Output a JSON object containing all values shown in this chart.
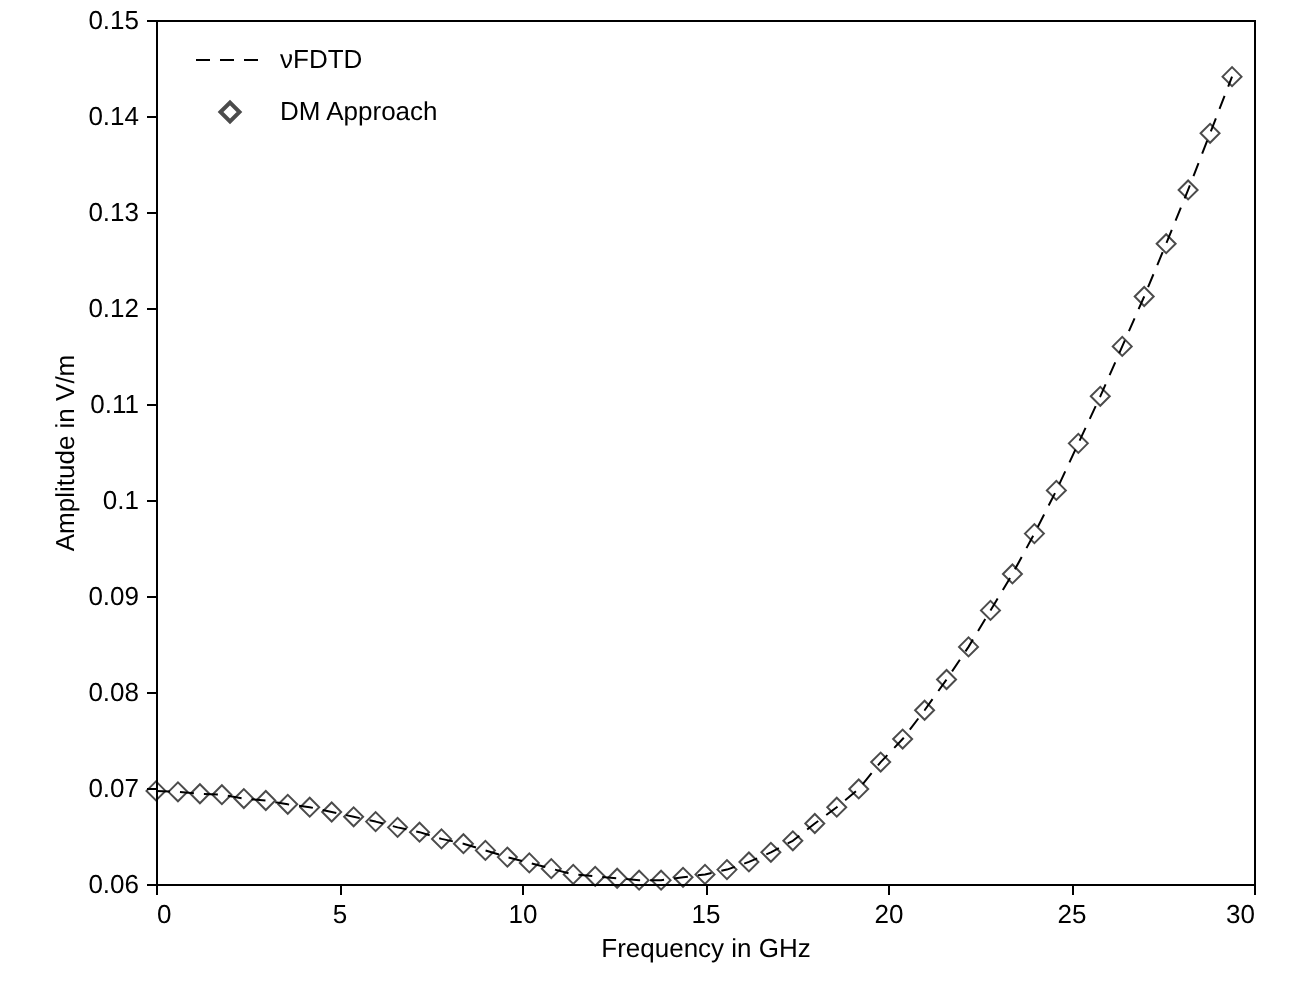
{
  "chart_data": {
    "type": "line",
    "xlabel": "Frequency in GHz",
    "ylabel": "Amplitude in V/m",
    "x": [
      0,
      0.6,
      1.2,
      1.8,
      2.4,
      3.0,
      3.6,
      4.2,
      4.8,
      5.4,
      6.0,
      6.6,
      7.2,
      7.8,
      8.4,
      9.0,
      9.6,
      10.2,
      10.8,
      11.4,
      12.0,
      12.6,
      13.2,
      13.8,
      14.4,
      15.0,
      15.6,
      16.2,
      16.8,
      17.4,
      18.0,
      18.6,
      19.2,
      19.8,
      20.4,
      21.0,
      21.6,
      22.2,
      22.8,
      23.4,
      24.0,
      24.6,
      25.2,
      25.8,
      26.4,
      27.0,
      27.6,
      28.2,
      28.8,
      29.4
    ],
    "series": [
      {
        "name": "νFDTD",
        "color": "#000000",
        "line_style": "dashed",
        "marker": "none",
        "values": [
          0.0697,
          0.0696,
          0.0694,
          0.0693,
          0.0689,
          0.0687,
          0.0683,
          0.068,
          0.0675,
          0.067,
          0.0665,
          0.0659,
          0.0654,
          0.0647,
          0.0642,
          0.0635,
          0.0628,
          0.0622,
          0.0616,
          0.061,
          0.0608,
          0.0606,
          0.0604,
          0.0604,
          0.0607,
          0.061,
          0.0615,
          0.0623,
          0.0633,
          0.0645,
          0.0663,
          0.068,
          0.0699,
          0.0727,
          0.0751,
          0.0781,
          0.0813,
          0.0847,
          0.0885,
          0.0923,
          0.0965,
          0.101,
          0.1059,
          0.1108,
          0.116,
          0.1212,
          0.1267,
          0.1323,
          0.1382,
          0.1441
        ]
      },
      {
        "name": "DM Approach",
        "type": "scatter",
        "color": "#000000",
        "marker": "diamond",
        "values": [
          0.0697,
          0.0696,
          0.0694,
          0.0693,
          0.0689,
          0.0687,
          0.0683,
          0.068,
          0.0675,
          0.067,
          0.0665,
          0.0659,
          0.0654,
          0.0647,
          0.0642,
          0.0635,
          0.0628,
          0.0622,
          0.0616,
          0.061,
          0.0608,
          0.0606,
          0.0604,
          0.0604,
          0.0607,
          0.061,
          0.0615,
          0.0623,
          0.0633,
          0.0645,
          0.0663,
          0.068,
          0.0699,
          0.0727,
          0.0751,
          0.0781,
          0.0813,
          0.0847,
          0.0885,
          0.0923,
          0.0965,
          0.101,
          0.1059,
          0.1108,
          0.116,
          0.1212,
          0.1267,
          0.1323,
          0.1382,
          0.1441
        ]
      }
    ],
    "xlim": [
      0,
      30
    ],
    "xticks": [
      0,
      5,
      10,
      15,
      20,
      25,
      30
    ],
    "ylim": [
      0.06,
      0.15
    ],
    "yticks": [
      0.06,
      0.07,
      0.08,
      0.09,
      0.1,
      0.11,
      0.12,
      0.13,
      0.14,
      0.15
    ],
    "grid": false,
    "legend": "top left"
  }
}
